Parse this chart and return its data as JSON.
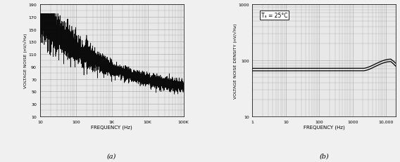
{
  "chart_a": {
    "title": "(a)",
    "xlabel": "FREQUENCY (Hz)",
    "ylabel": "VOLTAGE NOISE (nV/√Hz)",
    "xlim": [
      10,
      100000
    ],
    "ylim": [
      10,
      190
    ],
    "yticks": [
      10,
      30,
      50,
      70,
      90,
      110,
      130,
      150,
      170,
      190
    ],
    "xtick_labels": [
      "10",
      "100",
      "1K",
      "10K",
      "100K"
    ],
    "xtick_vals": [
      10,
      100,
      1000,
      10000,
      100000
    ],
    "bg_color": "#e8e8e8",
    "grid_color": "#b0b0b0",
    "line_color": "#000000"
  },
  "chart_b": {
    "title": "(b)",
    "xlabel": "FREQUENCY (Hz)",
    "ylabel": "VOLTAGE NOISE DENSITY (nV/√Hz)",
    "annotation": "Tₐ = 25°C",
    "xlim": [
      1,
      20000
    ],
    "ylim": [
      10,
      1000
    ],
    "yticks": [
      10,
      100,
      1000
    ],
    "xtick_labels": [
      "1",
      "10",
      "100",
      "1000",
      "10,000"
    ],
    "xtick_vals": [
      1,
      10,
      100,
      1000,
      10000
    ],
    "bg_color": "#e8e8e8",
    "grid_color": "#b0b0b0",
    "line_color": "#000000",
    "curve1_flat": 65,
    "curve2_flat": 72,
    "peak_freq": 14000,
    "peak1": 95,
    "peak2": 105,
    "end1": 78,
    "end2": 88
  }
}
